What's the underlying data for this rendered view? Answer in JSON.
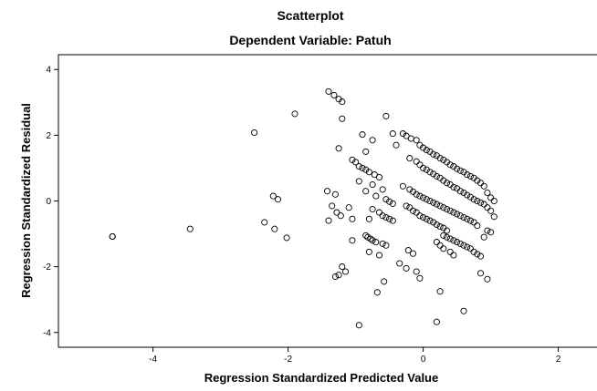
{
  "chart_data": {
    "type": "scatter",
    "title": "Scatterplot",
    "subtitle": "Dependent Variable: Patuh",
    "xlabel": "Regression Standardized Predicted Value",
    "ylabel": "Regression Standardized Residual",
    "xlim": [
      -5.4,
      2.6
    ],
    "ylim": [
      -4.45,
      4.45
    ],
    "xticks": [
      -4,
      -2,
      0,
      2
    ],
    "yticks": [
      -4,
      -2,
      0,
      2,
      4
    ],
    "xtick_labels": [
      "-4",
      "-2",
      "0",
      "2"
    ],
    "ytick_labels": [
      "-4",
      "-2",
      "0",
      "2",
      "4"
    ],
    "grid": false,
    "marker": "hollow-circle",
    "marker_color": "#000000",
    "points": [
      [
        -4.6,
        -1.08
      ],
      [
        -4.6,
        -1.08
      ],
      [
        -3.45,
        -0.85
      ],
      [
        -2.5,
        2.08
      ],
      [
        -2.35,
        -0.65
      ],
      [
        -2.22,
        0.15
      ],
      [
        -2.15,
        0.05
      ],
      [
        -2.2,
        -0.85
      ],
      [
        -2.02,
        -1.12
      ],
      [
        -1.9,
        2.65
      ],
      [
        -1.4,
        3.33
      ],
      [
        -1.32,
        3.22
      ],
      [
        -1.25,
        3.1
      ],
      [
        -1.2,
        3.02
      ],
      [
        -1.2,
        2.5
      ],
      [
        -1.25,
        1.6
      ],
      [
        -1.4,
        -0.6
      ],
      [
        -1.35,
        -0.15
      ],
      [
        -1.42,
        0.3
      ],
      [
        -1.3,
        0.2
      ],
      [
        -1.28,
        -0.35
      ],
      [
        -1.22,
        -0.45
      ],
      [
        -1.15,
        -2.15
      ],
      [
        -1.25,
        -2.25
      ],
      [
        -1.3,
        -2.3
      ],
      [
        -1.2,
        -2.0
      ],
      [
        -1.05,
        -1.2
      ],
      [
        -1.05,
        -0.55
      ],
      [
        -1.1,
        -0.2
      ],
      [
        -1.05,
        1.25
      ],
      [
        -1.0,
        1.18
      ],
      [
        -0.95,
        1.05
      ],
      [
        -0.9,
        1.0
      ],
      [
        -0.85,
        0.95
      ],
      [
        -0.8,
        0.88
      ],
      [
        -0.72,
        0.8
      ],
      [
        -0.65,
        0.72
      ],
      [
        -0.9,
        2.02
      ],
      [
        -0.85,
        1.5
      ],
      [
        -0.75,
        1.85
      ],
      [
        -0.55,
        2.58
      ],
      [
        -0.45,
        2.05
      ],
      [
        -0.4,
        1.7
      ],
      [
        -0.95,
        0.6
      ],
      [
        -0.85,
        0.3
      ],
      [
        -0.75,
        0.5
      ],
      [
        -0.7,
        0.15
      ],
      [
        -0.6,
        0.35
      ],
      [
        -0.55,
        0.05
      ],
      [
        -0.5,
        -0.02
      ],
      [
        -0.45,
        -0.08
      ],
      [
        -0.8,
        -0.55
      ],
      [
        -0.75,
        -0.25
      ],
      [
        -0.65,
        -0.35
      ],
      [
        -0.6,
        -0.45
      ],
      [
        -0.55,
        -0.5
      ],
      [
        -0.5,
        -0.55
      ],
      [
        -0.45,
        -0.6
      ],
      [
        -0.85,
        -1.05
      ],
      [
        -0.82,
        -1.1
      ],
      [
        -0.78,
        -1.15
      ],
      [
        -0.75,
        -1.2
      ],
      [
        -0.7,
        -1.25
      ],
      [
        -0.6,
        -1.3
      ],
      [
        -0.55,
        -1.35
      ],
      [
        -0.8,
        -1.55
      ],
      [
        -0.65,
        -1.65
      ],
      [
        -0.58,
        -2.45
      ],
      [
        -0.68,
        -2.78
      ],
      [
        -0.35,
        -1.9
      ],
      [
        -0.25,
        -2.05
      ],
      [
        -0.22,
        -1.5
      ],
      [
        -0.15,
        -1.6
      ],
      [
        -0.1,
        -2.15
      ],
      [
        -0.05,
        -2.35
      ],
      [
        -0.95,
        -3.78
      ],
      [
        -0.3,
        2.05
      ],
      [
        -0.25,
        1.98
      ],
      [
        -0.18,
        1.9
      ],
      [
        -0.1,
        1.85
      ],
      [
        -0.05,
        1.7
      ],
      [
        0.0,
        1.62
      ],
      [
        0.05,
        1.55
      ],
      [
        0.1,
        1.5
      ],
      [
        0.15,
        1.42
      ],
      [
        0.2,
        1.38
      ],
      [
        0.25,
        1.3
      ],
      [
        0.3,
        1.25
      ],
      [
        0.35,
        1.18
      ],
      [
        0.4,
        1.1
      ],
      [
        0.45,
        1.05
      ],
      [
        0.5,
        0.98
      ],
      [
        0.55,
        0.92
      ],
      [
        0.6,
        0.88
      ],
      [
        0.65,
        0.8
      ],
      [
        0.7,
        0.75
      ],
      [
        0.75,
        0.7
      ],
      [
        0.8,
        0.62
      ],
      [
        0.85,
        0.55
      ],
      [
        0.9,
        0.45
      ],
      [
        0.95,
        0.25
      ],
      [
        1.0,
        0.1
      ],
      [
        1.05,
        0.0
      ],
      [
        -0.2,
        1.3
      ],
      [
        -0.1,
        1.2
      ],
      [
        -0.05,
        1.1
      ],
      [
        0.0,
        1.0
      ],
      [
        0.05,
        0.95
      ],
      [
        0.1,
        0.88
      ],
      [
        0.15,
        0.82
      ],
      [
        0.2,
        0.75
      ],
      [
        0.25,
        0.7
      ],
      [
        0.3,
        0.62
      ],
      [
        0.35,
        0.55
      ],
      [
        0.4,
        0.5
      ],
      [
        0.45,
        0.42
      ],
      [
        0.5,
        0.38
      ],
      [
        0.55,
        0.3
      ],
      [
        0.6,
        0.25
      ],
      [
        0.65,
        0.18
      ],
      [
        0.7,
        0.12
      ],
      [
        0.75,
        0.05
      ],
      [
        0.8,
        0.0
      ],
      [
        0.85,
        -0.05
      ],
      [
        0.9,
        -0.1
      ],
      [
        0.95,
        -0.2
      ],
      [
        1.0,
        -0.3
      ],
      [
        1.05,
        -0.48
      ],
      [
        -0.3,
        0.45
      ],
      [
        -0.2,
        0.35
      ],
      [
        -0.15,
        0.28
      ],
      [
        -0.1,
        0.2
      ],
      [
        -0.05,
        0.15
      ],
      [
        0.0,
        0.1
      ],
      [
        0.05,
        0.05
      ],
      [
        0.1,
        0.0
      ],
      [
        0.15,
        -0.05
      ],
      [
        0.2,
        -0.1
      ],
      [
        0.25,
        -0.15
      ],
      [
        0.3,
        -0.2
      ],
      [
        0.35,
        -0.25
      ],
      [
        0.4,
        -0.3
      ],
      [
        0.45,
        -0.35
      ],
      [
        0.5,
        -0.4
      ],
      [
        0.55,
        -0.45
      ],
      [
        0.6,
        -0.5
      ],
      [
        0.65,
        -0.55
      ],
      [
        0.7,
        -0.6
      ],
      [
        0.75,
        -0.65
      ],
      [
        0.8,
        -0.75
      ],
      [
        -0.25,
        -0.15
      ],
      [
        -0.2,
        -0.2
      ],
      [
        -0.15,
        -0.3
      ],
      [
        -0.1,
        -0.35
      ],
      [
        -0.05,
        -0.45
      ],
      [
        0.0,
        -0.5
      ],
      [
        0.05,
        -0.55
      ],
      [
        0.1,
        -0.6
      ],
      [
        0.15,
        -0.65
      ],
      [
        0.2,
        -0.72
      ],
      [
        0.25,
        -0.78
      ],
      [
        0.3,
        -0.82
      ],
      [
        0.35,
        -0.9
      ],
      [
        0.3,
        -1.05
      ],
      [
        0.35,
        -1.1
      ],
      [
        0.4,
        -1.15
      ],
      [
        0.45,
        -1.2
      ],
      [
        0.5,
        -1.25
      ],
      [
        0.55,
        -1.3
      ],
      [
        0.6,
        -1.35
      ],
      [
        0.65,
        -1.4
      ],
      [
        0.7,
        -1.45
      ],
      [
        0.75,
        -1.55
      ],
      [
        0.8,
        -1.62
      ],
      [
        0.85,
        -1.68
      ],
      [
        0.9,
        -1.1
      ],
      [
        0.95,
        -0.9
      ],
      [
        1.0,
        -0.95
      ],
      [
        0.2,
        -1.25
      ],
      [
        0.25,
        -1.35
      ],
      [
        0.3,
        -1.45
      ],
      [
        0.4,
        -1.55
      ],
      [
        0.45,
        -1.65
      ],
      [
        0.85,
        -2.2
      ],
      [
        0.95,
        -2.38
      ],
      [
        0.25,
        -2.75
      ],
      [
        0.6,
        -3.35
      ],
      [
        0.2,
        -3.68
      ]
    ]
  }
}
